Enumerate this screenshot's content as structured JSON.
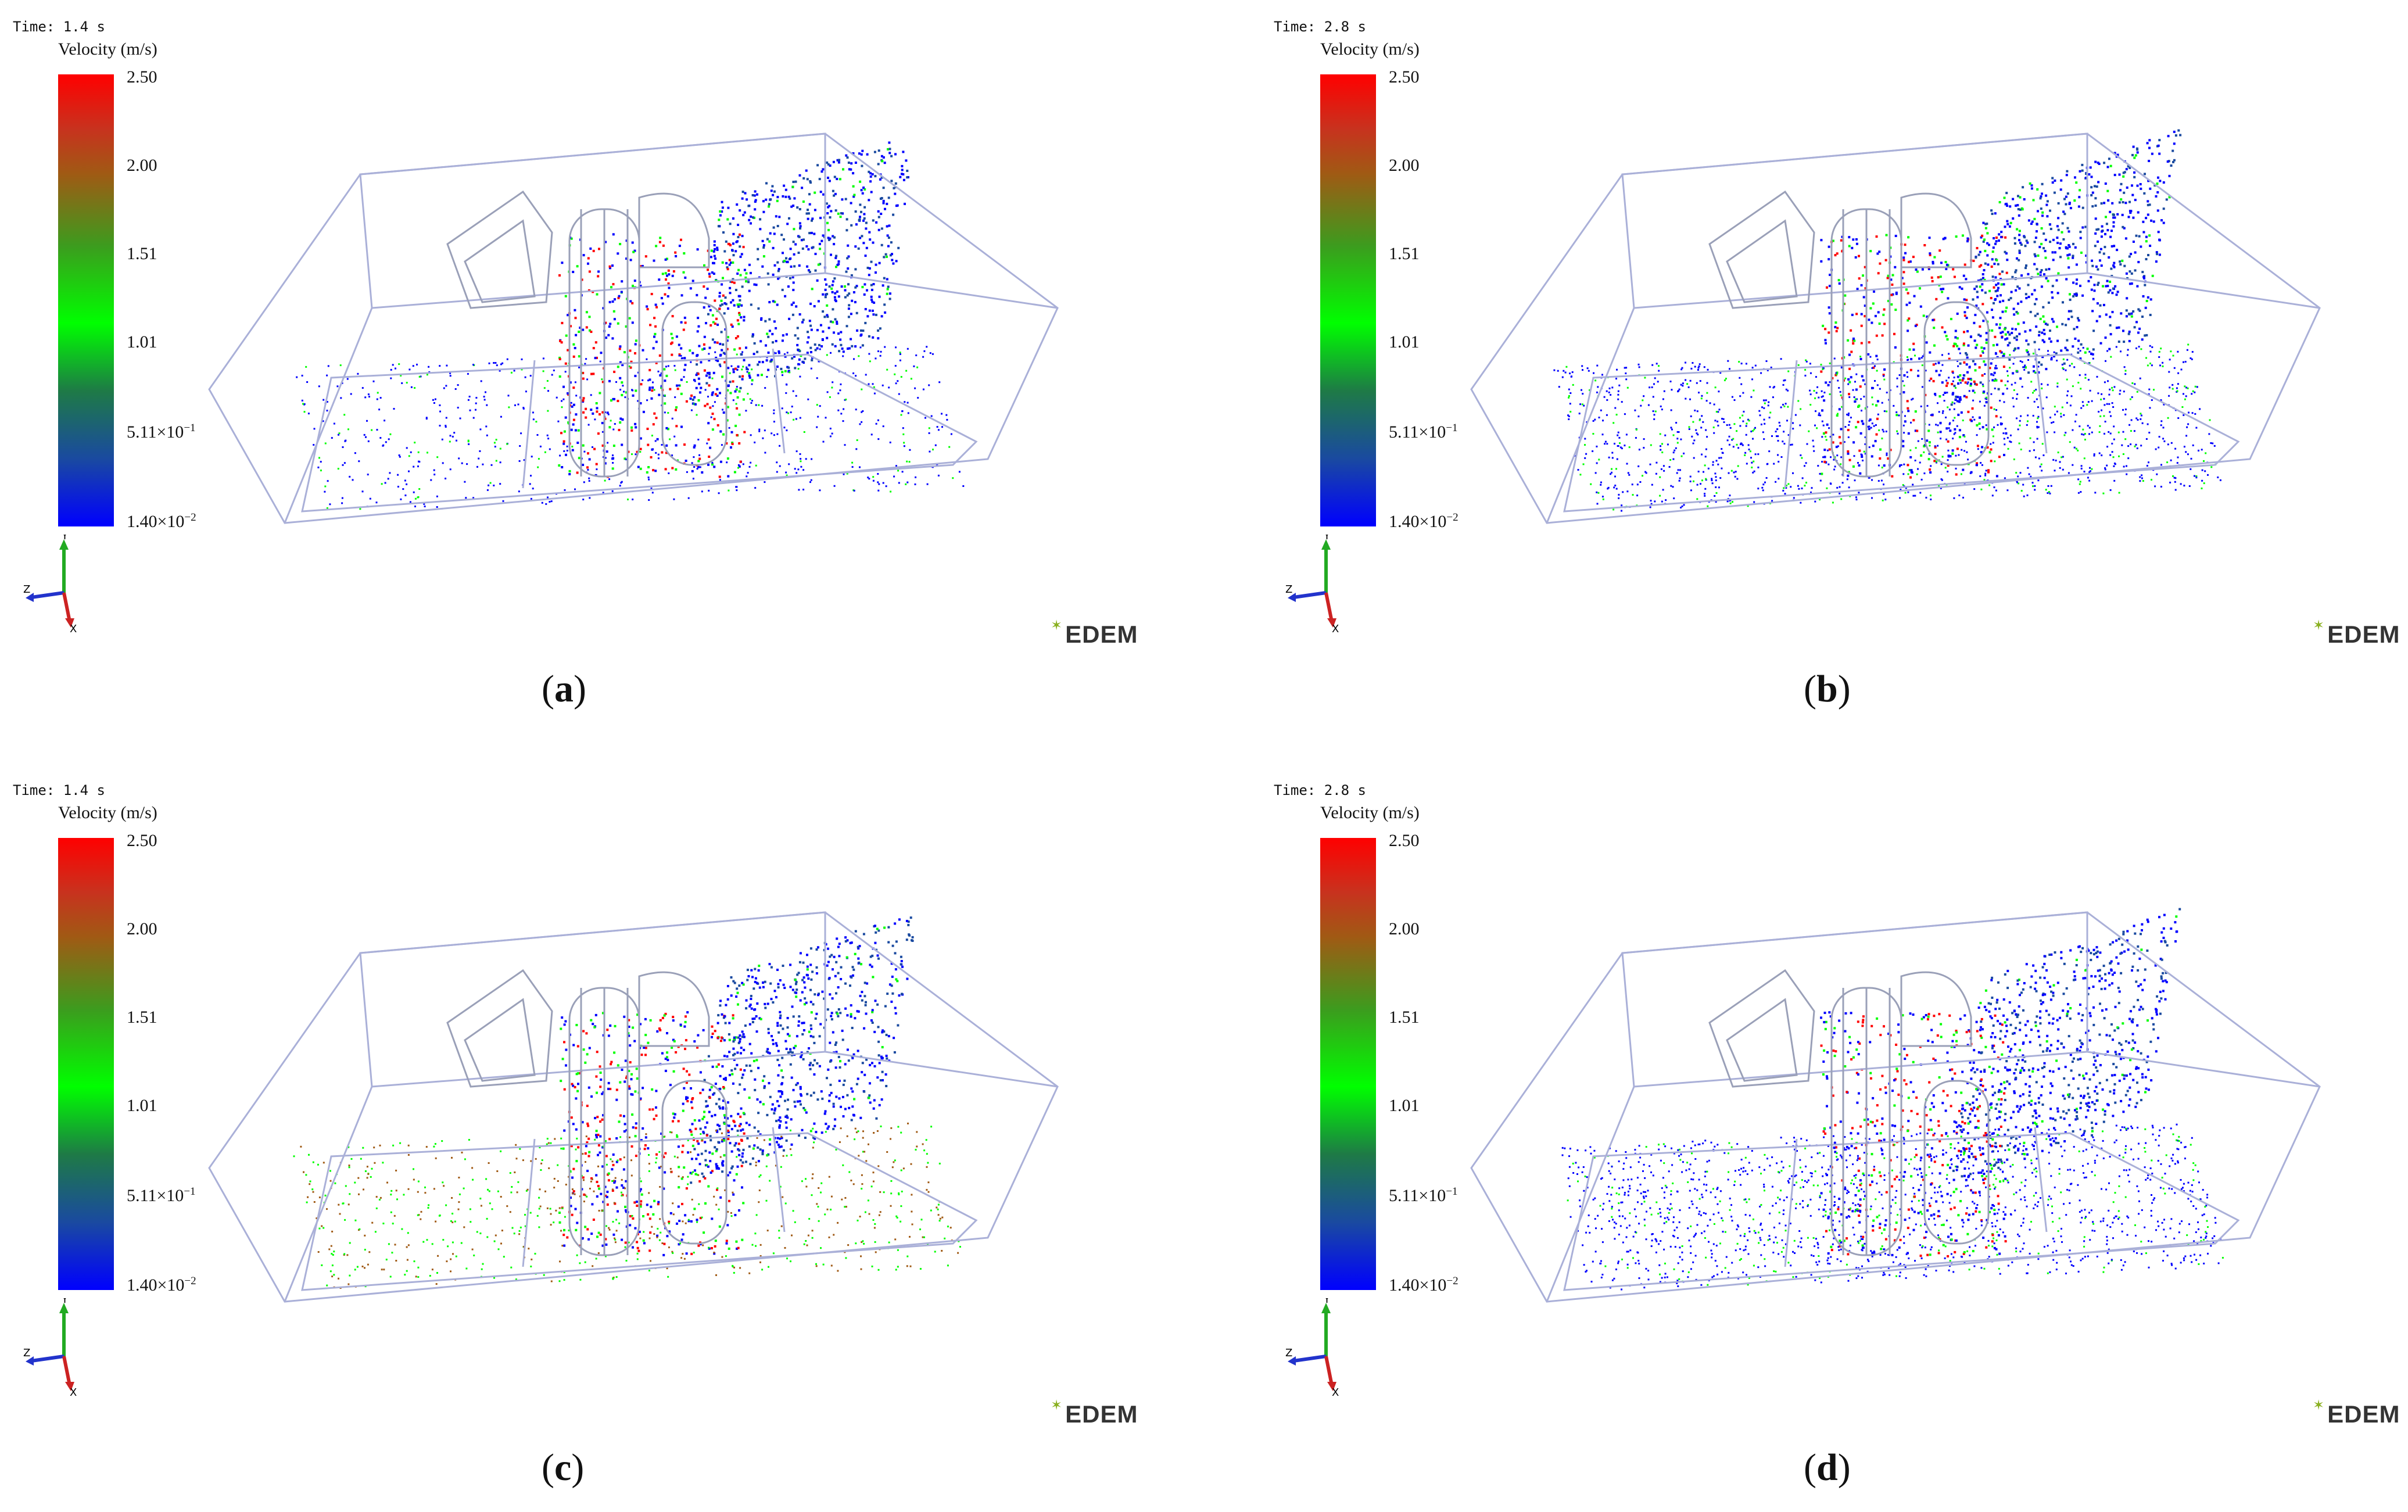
{
  "legend": {
    "title": "Velocity (m/s)",
    "ticks": [
      {
        "base": "2.50",
        "exp": ""
      },
      {
        "base": "2.00",
        "exp": ""
      },
      {
        "base": "1.51",
        "exp": ""
      },
      {
        "base": "1.01",
        "exp": ""
      },
      {
        "base": "5.11×10",
        "exp": "−1"
      },
      {
        "base": "1.40×10",
        "exp": "−2"
      }
    ],
    "colors": [
      "#ff0000",
      "#a05a14",
      "#00ff00",
      "#1a4aa0",
      "#0000ff"
    ]
  },
  "logo_text": "EDEM",
  "axis_labels": {
    "y": "Y",
    "z": "Z",
    "x": "X"
  },
  "panels": [
    {
      "id": "a",
      "time": "Time: 1.4 s",
      "caption_open": "(",
      "caption_letter": "a",
      "caption_close": ")"
    },
    {
      "id": "b",
      "time": "Time: 2.8 s",
      "caption_open": "(",
      "caption_letter": "b",
      "caption_close": ")"
    },
    {
      "id": "c",
      "time": "Time: 1.4 s",
      "caption_open": "(",
      "caption_letter": "c",
      "caption_close": ")"
    },
    {
      "id": "d",
      "time": "Time: 2.8 s",
      "caption_open": "(",
      "caption_letter": "d",
      "caption_close": ")"
    }
  ]
}
